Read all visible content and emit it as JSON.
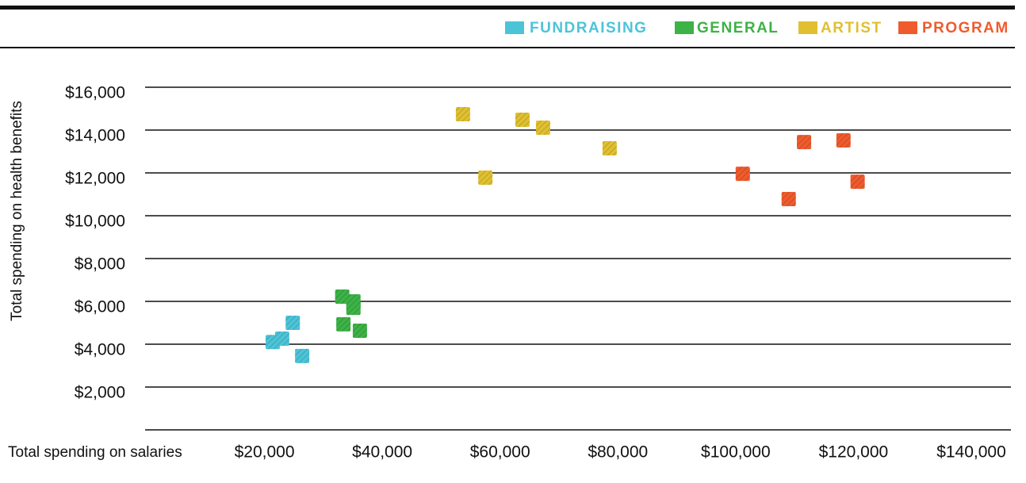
{
  "chart_data": {
    "type": "scatter",
    "x_label": "Total spending on salaries",
    "y_label": "Total spending on health benefits",
    "xlim": [
      0,
      147000
    ],
    "ylim": [
      0,
      16000
    ],
    "xticks": [
      {
        "value": 20000,
        "label": "$20,000"
      },
      {
        "value": 40000,
        "label": "$40,000"
      },
      {
        "value": 60000,
        "label": "$60,000"
      },
      {
        "value": 80000,
        "label": "$80,000"
      },
      {
        "value": 100000,
        "label": "$100,000"
      },
      {
        "value": 120000,
        "label": "$120,000"
      },
      {
        "value": 140000,
        "label": "$140,000"
      }
    ],
    "yticks": [
      {
        "value": 2000,
        "label": "$2,000"
      },
      {
        "value": 4000,
        "label": "$4,000"
      },
      {
        "value": 6000,
        "label": "$6,000"
      },
      {
        "value": 8000,
        "label": "$8,000"
      },
      {
        "value": 10000,
        "label": "$10,000"
      },
      {
        "value": 12000,
        "label": "$12,000"
      },
      {
        "value": 14000,
        "label": "$14,000"
      },
      {
        "value": 16000,
        "label": "$16,000"
      }
    ],
    "grid": true,
    "legend": "top-right",
    "series": [
      {
        "name": "FUNDRAISING",
        "color": "#4cc4d8",
        "x": [
          21400,
          23000,
          24800,
          26400
        ],
        "values": [
          4100,
          4260,
          5000,
          3450
        ]
      },
      {
        "name": "GENERAL",
        "color": "#3db246",
        "x": [
          33200,
          35100,
          35100,
          33400,
          36200
        ],
        "values": [
          6220,
          6000,
          5700,
          4930,
          4630
        ]
      },
      {
        "name": "ARTIST",
        "color": "#e0c030",
        "x": [
          53700,
          57500,
          63800,
          67300,
          78600
        ],
        "values": [
          14740,
          11780,
          14480,
          14110,
          13150
        ]
      },
      {
        "name": "PROGRAM",
        "color": "#ef5b2d",
        "x": [
          101200,
          109000,
          111600,
          118300,
          120700
        ],
        "values": [
          11960,
          10780,
          13440,
          13520,
          11590
        ]
      }
    ]
  }
}
